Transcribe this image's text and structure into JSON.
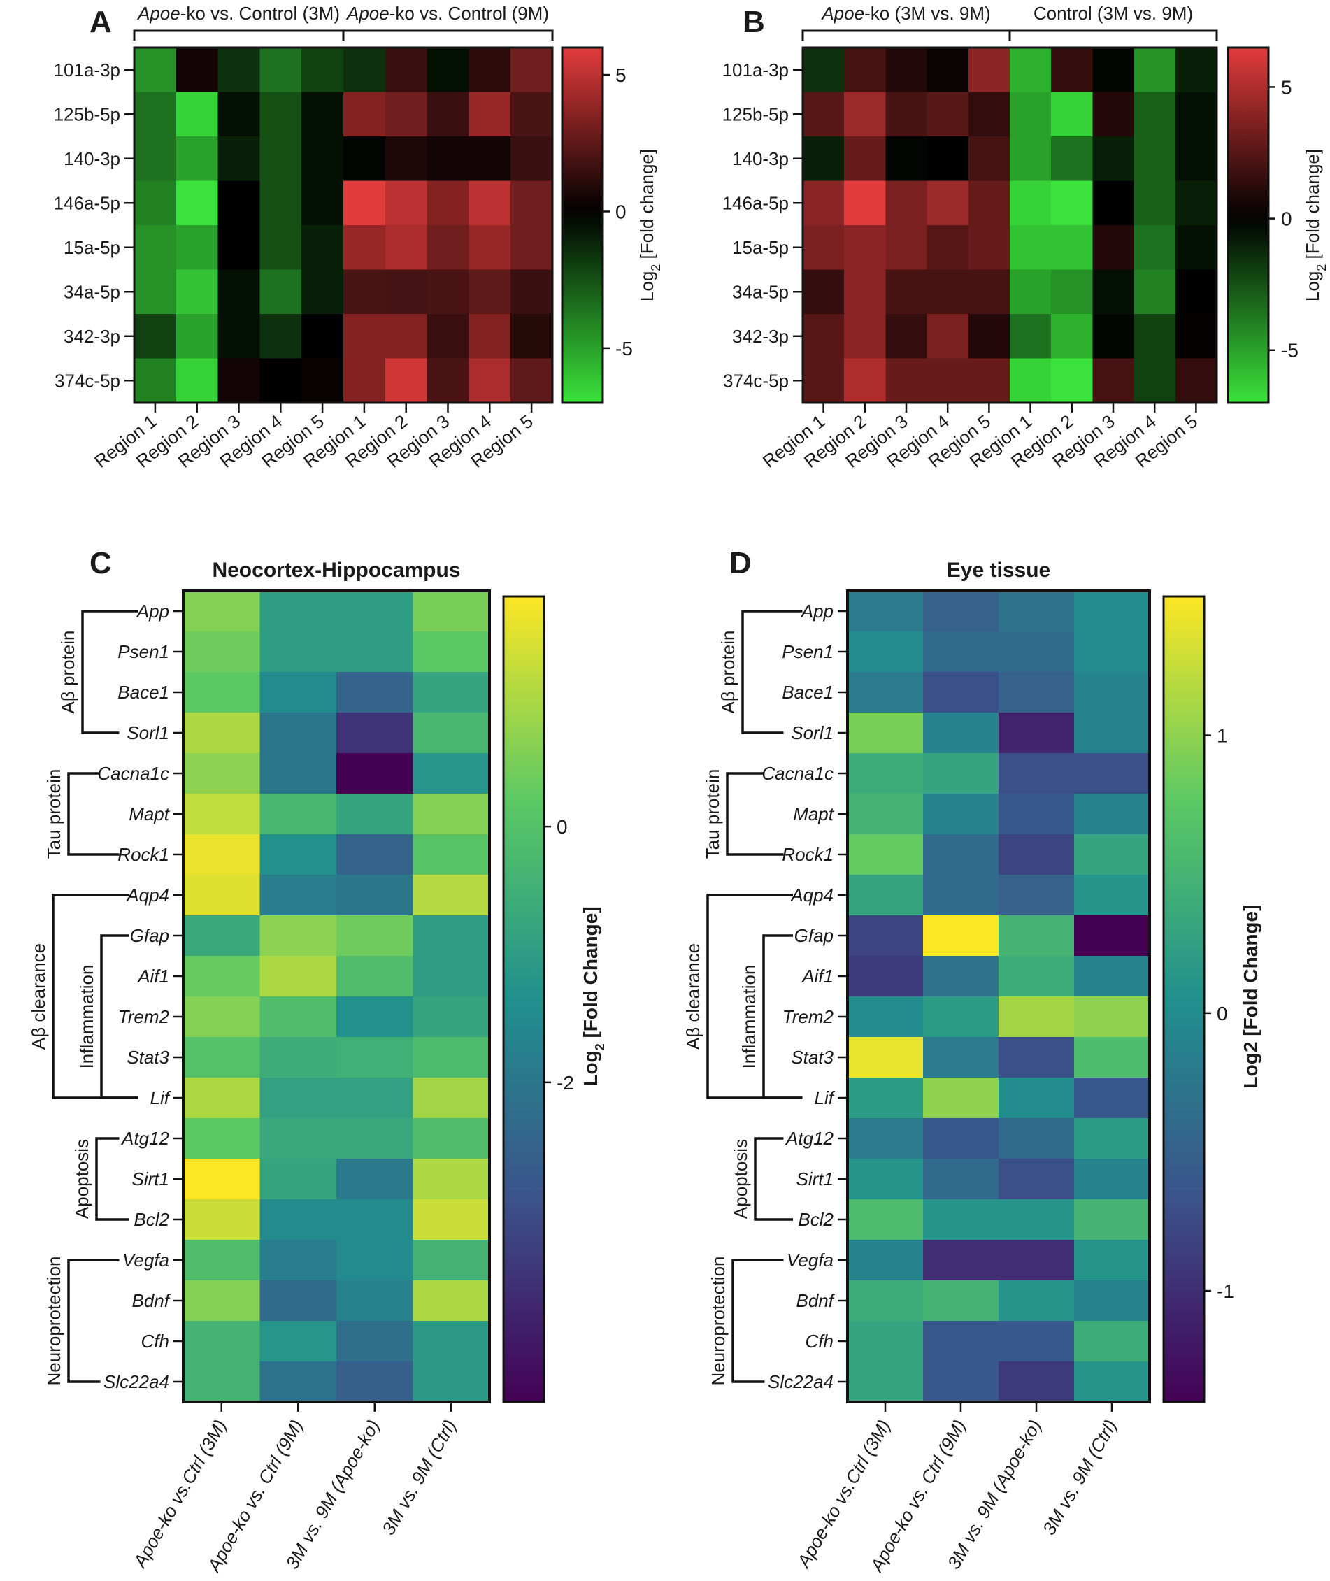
{
  "colors": {
    "redgreen": [
      "#3be23b",
      "#000000",
      "#e23b3b"
    ],
    "viridis": [
      "#440154",
      "#3b528b",
      "#21908d",
      "#5dc963",
      "#fde725"
    ]
  },
  "chart_data": [
    {
      "panel": "A",
      "type": "heatmap",
      "title": "",
      "colormap": "redgreen",
      "vmin": -7,
      "vmax": 6,
      "rows": [
        "101a-3p",
        "125b-5p",
        "140-3p",
        "146a-5p",
        "15a-5p",
        "34a-5p",
        "342-3p",
        "374c-5p"
      ],
      "columns": [
        "Region 1",
        "Region 2",
        "Region 3",
        "Region 4",
        "Region 5",
        "Region 1",
        "Region 2",
        "Region 3",
        "Region 4",
        "Region 5"
      ],
      "column_groups": [
        {
          "prefix": "Apoe",
          "suffix": "-ko vs. Control (3M)",
          "span": [
            0,
            4
          ]
        },
        {
          "prefix": "Apoe",
          "suffix": "-ko vs. Control (9M)",
          "span": [
            5,
            9
          ]
        }
      ],
      "values": [
        [
          -4.5,
          0.5,
          -1.5,
          -3.5,
          -2.0,
          -1.5,
          1.5,
          -0.5,
          1.2,
          3.0
        ],
        [
          -3.5,
          -6.5,
          -0.5,
          -2.5,
          -0.5,
          3.5,
          3.0,
          1.5,
          4.0,
          2.0
        ],
        [
          -3.5,
          -5.0,
          -1.0,
          -2.5,
          -0.5,
          -0.2,
          0.8,
          0.5,
          0.5,
          1.5
        ],
        [
          -4.0,
          -7.5,
          0.0,
          -2.5,
          -0.5,
          6.0,
          5.0,
          3.5,
          5.0,
          3.0
        ],
        [
          -4.5,
          -5.0,
          0.0,
          -2.5,
          -1.0,
          4.0,
          4.5,
          3.0,
          4.0,
          3.0
        ],
        [
          -4.5,
          -6.0,
          -0.5,
          -3.5,
          -1.0,
          2.0,
          1.8,
          2.0,
          2.5,
          1.5
        ],
        [
          -2.0,
          -5.0,
          -0.5,
          -1.5,
          0.0,
          3.5,
          3.5,
          1.5,
          3.5,
          1.0
        ],
        [
          -4.0,
          -6.5,
          0.5,
          0.0,
          0.2,
          3.5,
          5.5,
          2.0,
          4.5,
          2.5
        ]
      ],
      "colorbar": {
        "label_main": "Log",
        "label_sub": "2",
        "label_rest": " [Fold change]",
        "ticks": [
          5,
          0,
          -5
        ]
      }
    },
    {
      "panel": "B",
      "type": "heatmap",
      "title": "",
      "colormap": "redgreen",
      "vmin": -7,
      "vmax": 6.5,
      "rows": [
        "101a-3p",
        "125b-5p",
        "140-3p",
        "146a-5p",
        "15a-5p",
        "34a-5p",
        "342-3p",
        "374c-5p"
      ],
      "columns": [
        "Region 1",
        "Region 2",
        "Region 3",
        "Region 4",
        "Region 5",
        "Region 1",
        "Region 2",
        "Region 3",
        "Region 4",
        "Region 5"
      ],
      "column_groups": [
        {
          "prefix": "Apoe",
          "suffix": "-ko  (3M vs. 9M)",
          "span": [
            0,
            4
          ]
        },
        {
          "prefix": "",
          "suffix": "Control (3M vs. 9M)",
          "span": [
            5,
            9
          ]
        }
      ],
      "values": [
        [
          -1.5,
          2.0,
          1.0,
          0.3,
          4.0,
          -5.5,
          1.5,
          -0.2,
          -4.5,
          -1.0
        ],
        [
          2.5,
          4.5,
          2.0,
          2.5,
          1.5,
          -5.0,
          -6.5,
          1.0,
          -3.0,
          -0.5
        ],
        [
          -1.0,
          3.0,
          -0.2,
          0.0,
          2.0,
          -5.0,
          -3.5,
          -1.0,
          -3.0,
          -0.5
        ],
        [
          4.0,
          6.5,
          3.5,
          4.5,
          3.0,
          -6.5,
          -7.5,
          0.0,
          -3.0,
          -1.0
        ],
        [
          3.5,
          4.0,
          3.5,
          2.5,
          3.0,
          -6.0,
          -6.0,
          1.0,
          -3.5,
          -0.5
        ],
        [
          1.5,
          4.0,
          2.0,
          2.0,
          2.0,
          -5.0,
          -4.5,
          -0.5,
          -4.0,
          0.0
        ],
        [
          2.5,
          4.0,
          1.5,
          3.5,
          1.0,
          -3.5,
          -5.5,
          -0.2,
          -2.0,
          0.2
        ],
        [
          2.5,
          5.0,
          3.0,
          3.0,
          3.0,
          -6.5,
          -7.0,
          2.0,
          -2.0,
          1.5
        ]
      ],
      "colorbar": {
        "label_main": "Log",
        "label_sub": "2",
        "label_rest": " [Fold change]",
        "ticks": [
          5,
          0,
          -5
        ]
      }
    },
    {
      "panel": "C",
      "type": "heatmap",
      "title": "Neocortex-Hippocampus",
      "colormap": "viridis",
      "vmin": -4.5,
      "vmax": 1.8,
      "rows": [
        "App",
        "Psen1",
        "Bace1",
        "Sorl1",
        "Cacna1c",
        "Mapt",
        "Rock1",
        "Aqp4",
        "Gfap",
        "Aif1",
        "Trem2",
        "Stat3",
        "Lif",
        "Atg12",
        "Sirt1",
        "Bcl2",
        "Vegfa",
        "Bdnf",
        "Cfh",
        "Slc22a4"
      ],
      "columns": [
        "Apoe-ko vs.Ctrl (3M)",
        "Apoe-ko vs. Ctrl (9M)",
        "3M vs. 9M (Apoe-ko)",
        "3M vs. 9M (Ctrl)"
      ],
      "values": [
        [
          0.6,
          -1.0,
          -1.0,
          0.5
        ],
        [
          0.4,
          -1.0,
          -1.0,
          0.2
        ],
        [
          0.2,
          -1.5,
          -2.5,
          -0.8
        ],
        [
          1.0,
          -2.0,
          -3.5,
          -0.3
        ],
        [
          0.7,
          -2.0,
          -4.5,
          -1.2
        ],
        [
          1.2,
          -0.3,
          -0.8,
          0.6
        ],
        [
          1.6,
          -1.3,
          -2.5,
          0.1
        ],
        [
          1.5,
          -1.8,
          -2.0,
          1.1
        ],
        [
          -0.7,
          0.7,
          0.4,
          -1.0
        ],
        [
          0.3,
          1.0,
          -0.1,
          -1.0
        ],
        [
          0.6,
          -0.1,
          -1.3,
          -0.8
        ],
        [
          0.0,
          -0.6,
          -0.5,
          -0.2
        ],
        [
          1.0,
          -0.9,
          -0.9,
          0.9
        ],
        [
          0.2,
          -0.7,
          -0.7,
          -0.1
        ],
        [
          1.9,
          -0.8,
          -1.9,
          1.0
        ],
        [
          1.3,
          -1.5,
          -1.5,
          1.3
        ],
        [
          -0.1,
          -1.8,
          -1.5,
          -0.4
        ],
        [
          0.6,
          -2.3,
          -1.7,
          1.0
        ],
        [
          -0.4,
          -1.2,
          -2.2,
          -1.1
        ],
        [
          -0.4,
          -2.1,
          -2.6,
          -1.1
        ]
      ],
      "colorbar": {
        "label_main": "Log",
        "label_sub": "2",
        "label_rest": " [Fold Change]",
        "ticks": [
          0,
          -2
        ]
      }
    },
    {
      "panel": "D",
      "type": "heatmap",
      "title": "Eye tissue",
      "colormap": "viridis",
      "vmin": -1.4,
      "vmax": 1.5,
      "rows": [
        "App",
        "Psen1",
        "Bace1",
        "Sorl1",
        "Cacna1c",
        "Mapt",
        "Rock1",
        "Aqp4",
        "Gfap",
        "Aif1",
        "Trem2",
        "Stat3",
        "Lif",
        "Atg12",
        "Sirt1",
        "Bcl2",
        "Vegfa",
        "Bdnf",
        "Cfh",
        "Slc22a4"
      ],
      "columns": [
        "Apoe-ko vs.Ctrl (3M)",
        "Apoe-ko vs. Ctrl (9M)",
        "3M vs. 9M (Apoe-ko)",
        "3M vs. 9M (Ctrl)"
      ],
      "values": [
        [
          -0.2,
          -0.5,
          -0.3,
          0.0
        ],
        [
          0.0,
          -0.4,
          -0.4,
          0.0
        ],
        [
          -0.2,
          -0.7,
          -0.5,
          -0.1
        ],
        [
          0.9,
          -0.1,
          -1.1,
          -0.1
        ],
        [
          0.4,
          0.3,
          -0.7,
          -0.7
        ],
        [
          0.5,
          -0.1,
          -0.6,
          -0.1
        ],
        [
          0.8,
          -0.4,
          -0.8,
          0.3
        ],
        [
          0.3,
          -0.4,
          -0.5,
          0.1
        ],
        [
          -0.8,
          1.5,
          0.5,
          -1.4
        ],
        [
          -0.9,
          -0.3,
          0.4,
          -0.1
        ],
        [
          0.0,
          0.2,
          1.1,
          1.0
        ],
        [
          1.4,
          -0.2,
          -0.7,
          0.6
        ],
        [
          0.2,
          1.0,
          0.0,
          -0.6
        ],
        [
          -0.2,
          -0.6,
          -0.4,
          0.2
        ],
        [
          0.1,
          -0.4,
          -0.7,
          -0.1
        ],
        [
          0.6,
          0.1,
          0.1,
          0.5
        ],
        [
          -0.1,
          -1.0,
          -1.0,
          0.1
        ],
        [
          0.4,
          0.5,
          0.1,
          -0.1
        ],
        [
          0.3,
          -0.6,
          -0.6,
          0.4
        ],
        [
          0.3,
          -0.6,
          -0.9,
          0.1
        ]
      ],
      "colorbar": {
        "label_main": "Log2 [Fold Change]",
        "label_sub": "",
        "label_rest": "",
        "ticks": [
          1,
          0,
          -1
        ]
      }
    }
  ],
  "panel_labels": [
    "A",
    "B",
    "C",
    "D"
  ],
  "gene_groups": {
    "C": [
      {
        "label": "Aβ protein",
        "rows": [
          0,
          3
        ]
      },
      {
        "label": "Tau protein",
        "rows": [
          4,
          6
        ]
      },
      {
        "label": "Aβ clearance",
        "rows": [
          7,
          12
        ]
      },
      {
        "label": "Inflammation",
        "rows": [
          8,
          12
        ]
      },
      {
        "label": "Apoptosis",
        "rows": [
          13,
          15
        ]
      },
      {
        "label": "Neuroprotection",
        "rows": [
          16,
          19
        ]
      }
    ],
    "D": [
      {
        "label": "Aβ protein",
        "rows": [
          0,
          3
        ]
      },
      {
        "label": "Tau protein",
        "rows": [
          4,
          6
        ]
      },
      {
        "label": "Aβ clearance",
        "rows": [
          7,
          12
        ]
      },
      {
        "label": "Inflammation",
        "rows": [
          8,
          12
        ]
      },
      {
        "label": "Apoptosis",
        "rows": [
          13,
          15
        ]
      },
      {
        "label": "Neuroprotection",
        "rows": [
          16,
          19
        ]
      }
    ]
  }
}
